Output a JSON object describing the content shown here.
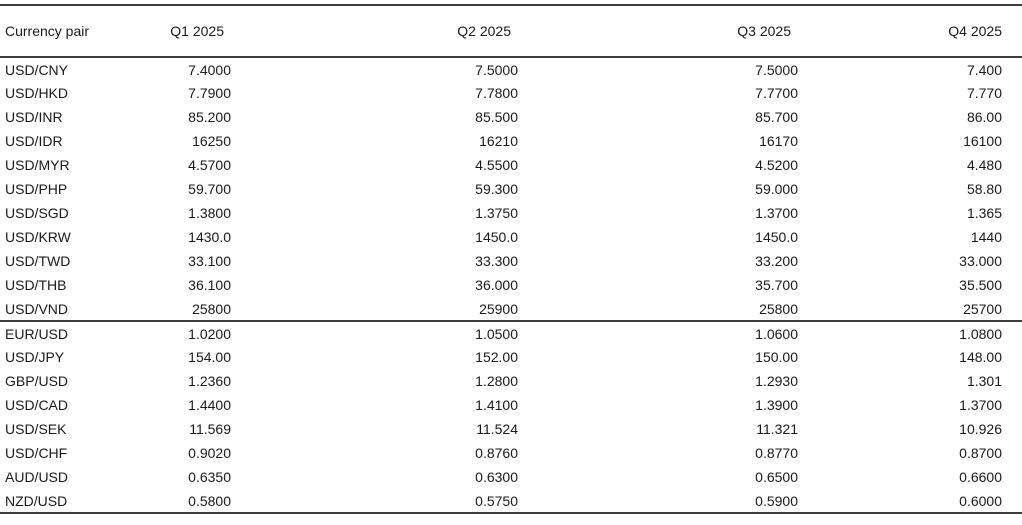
{
  "colors": {
    "background": "#ffffff",
    "text": "#1a1a1a",
    "rule": "#3d3d3d"
  },
  "chart_data": {
    "type": "table",
    "columns": [
      "Currency pair",
      "Q1 2025",
      "Q2 2025",
      "Q3 2025",
      "Q4 2025"
    ],
    "group_break_after": "USD/VND",
    "rows": [
      {
        "pair": "USD/CNY",
        "values": [
          "7.4000",
          "7.5000",
          "7.5000",
          "7.400"
        ]
      },
      {
        "pair": "USD/HKD",
        "values": [
          "7.7900",
          "7.7800",
          "7.7700",
          "7.770"
        ]
      },
      {
        "pair": "USD/INR",
        "values": [
          "85.200",
          "85.500",
          "85.700",
          "86.00"
        ]
      },
      {
        "pair": "USD/IDR",
        "values": [
          "16250",
          "16210",
          "16170",
          "16100"
        ]
      },
      {
        "pair": "USD/MYR",
        "values": [
          "4.5700",
          "4.5500",
          "4.5200",
          "4.480"
        ]
      },
      {
        "pair": "USD/PHP",
        "values": [
          "59.700",
          "59.300",
          "59.000",
          "58.80"
        ]
      },
      {
        "pair": "USD/SGD",
        "values": [
          "1.3800",
          "1.3750",
          "1.3700",
          "1.365"
        ]
      },
      {
        "pair": "USD/KRW",
        "values": [
          "1430.0",
          "1450.0",
          "1450.0",
          "1440"
        ]
      },
      {
        "pair": "USD/TWD",
        "values": [
          "33.100",
          "33.300",
          "33.200",
          "33.000"
        ]
      },
      {
        "pair": "USD/THB",
        "values": [
          "36.100",
          "36.000",
          "35.700",
          "35.500"
        ]
      },
      {
        "pair": "USD/VND",
        "values": [
          "25800",
          "25900",
          "25800",
          "25700"
        ]
      },
      {
        "pair": "EUR/USD",
        "values": [
          "1.0200",
          "1.0500",
          "1.0600",
          "1.0800"
        ]
      },
      {
        "pair": "USD/JPY",
        "values": [
          "154.00",
          "152.00",
          "150.00",
          "148.00"
        ]
      },
      {
        "pair": "GBP/USD",
        "values": [
          "1.2360",
          "1.2800",
          "1.2930",
          "1.301"
        ]
      },
      {
        "pair": "USD/CAD",
        "values": [
          "1.4400",
          "1.4100",
          "1.3900",
          "1.3700"
        ]
      },
      {
        "pair": "USD/SEK",
        "values": [
          "11.569",
          "11.524",
          "11.321",
          "10.926"
        ]
      },
      {
        "pair": "USD/CHF",
        "values": [
          "0.9020",
          "0.8760",
          "0.8770",
          "0.8700"
        ]
      },
      {
        "pair": "AUD/USD",
        "values": [
          "0.6350",
          "0.6300",
          "0.6500",
          "0.6600"
        ]
      },
      {
        "pair": "NZD/USD",
        "values": [
          "0.5800",
          "0.5750",
          "0.5900",
          "0.6000"
        ]
      }
    ]
  }
}
